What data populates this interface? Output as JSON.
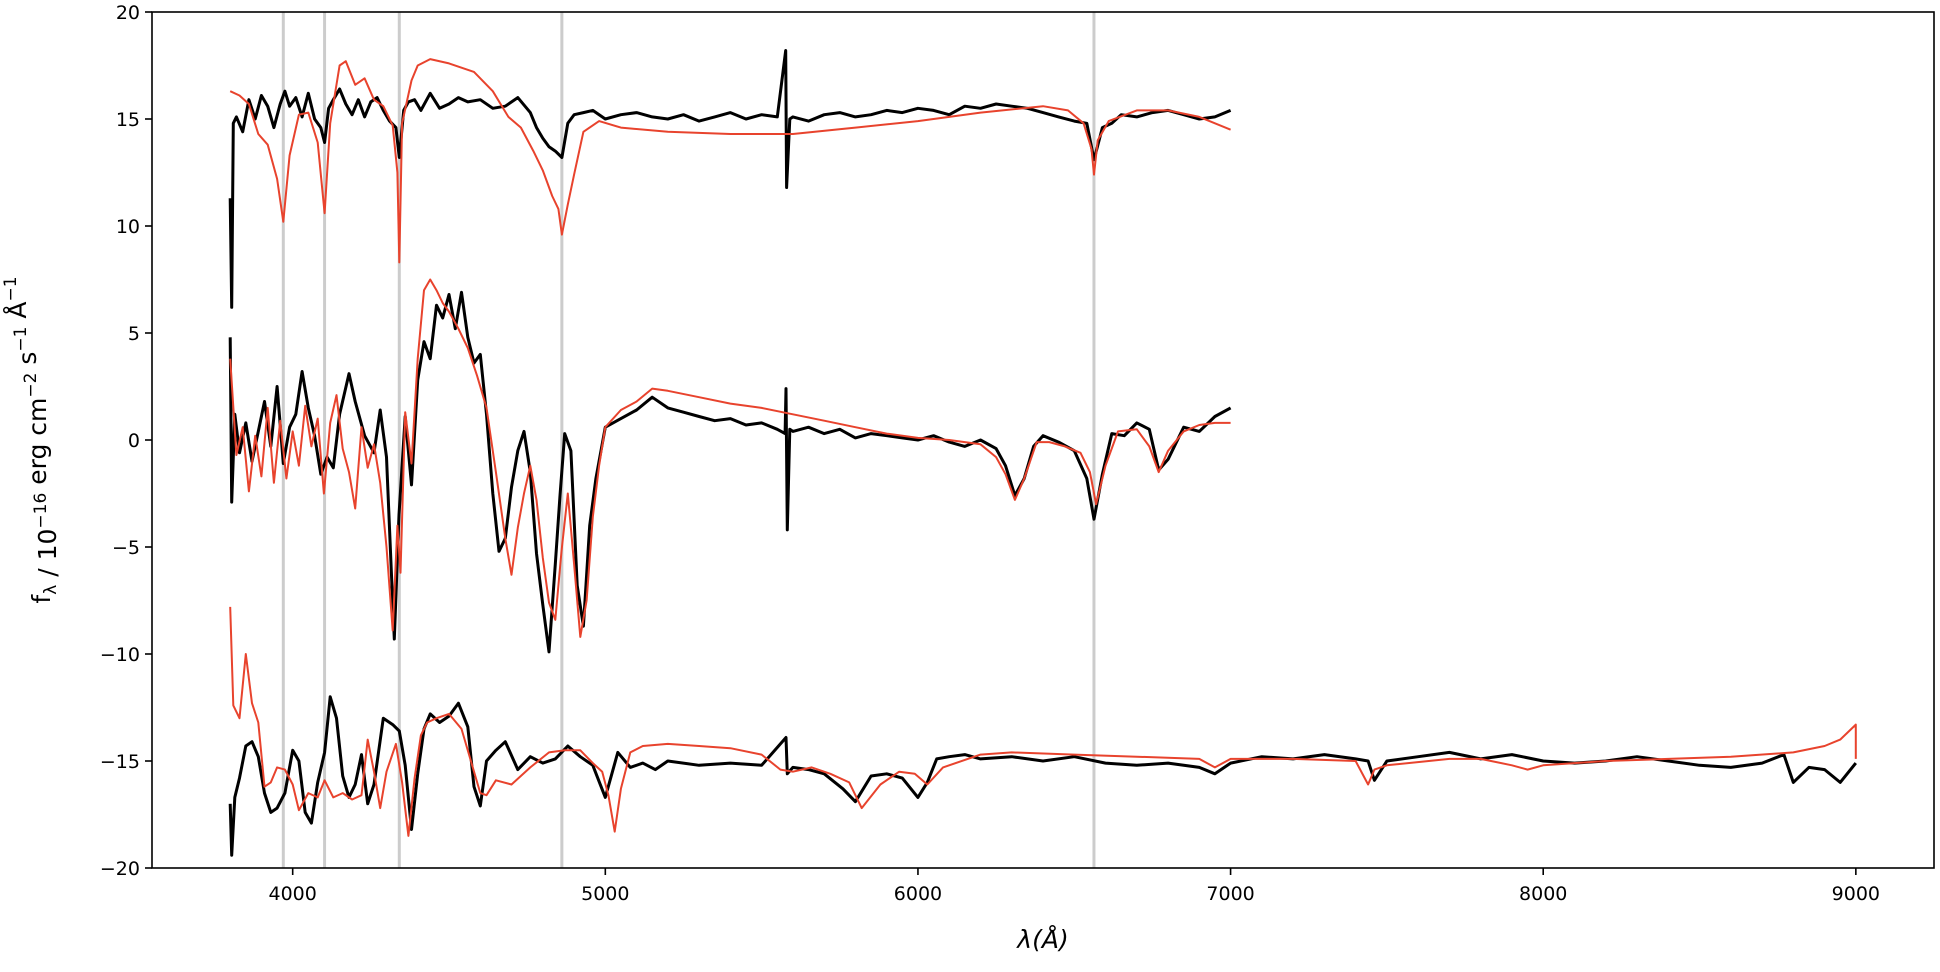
{
  "chart_data": {
    "type": "line",
    "title": "",
    "xlabel": "λ(Å)",
    "ylabel": "f_λ / 10^-16 erg cm^-2 s^-1 Å^-1",
    "xlim": [
      3550,
      9250
    ],
    "ylim": [
      -20,
      20
    ],
    "xticks": [
      4000,
      5000,
      6000,
      7000,
      8000,
      9000
    ],
    "yticks": [
      -20,
      -15,
      -10,
      -5,
      0,
      5,
      10,
      15,
      20
    ],
    "grid": false,
    "legend": "none",
    "reference_lines_x": [
      3970,
      4102,
      4341,
      4861,
      6563
    ],
    "reference_line_color": "#cccccc",
    "colors": {
      "observed": "#000000",
      "model": "#e8432d"
    },
    "series": [
      {
        "role": "observed",
        "group": "top",
        "x": [
          3800,
          3805,
          3810,
          3820,
          3840,
          3860,
          3880,
          3900,
          3920,
          3940,
          3960,
          3975,
          3990,
          4010,
          4030,
          4050,
          4070,
          4090,
          4102,
          4115,
          4130,
          4150,
          4170,
          4190,
          4210,
          4230,
          4250,
          4270,
          4290,
          4310,
          4330,
          4341,
          4355,
          4370,
          4390,
          4410,
          4440,
          4470,
          4500,
          4530,
          4560,
          4600,
          4640,
          4680,
          4720,
          4760,
          4780,
          4800,
          4820,
          4840,
          4861,
          4880,
          4900,
          4930,
          4960,
          5000,
          5050,
          5100,
          5150,
          5200,
          5250,
          5300,
          5350,
          5400,
          5450,
          5500,
          5550,
          5577,
          5580,
          5590,
          5600,
          5650,
          5700,
          5750,
          5800,
          5850,
          5900,
          5950,
          6000,
          6050,
          6100,
          6150,
          6200,
          6250,
          6300,
          6350,
          6400,
          6450,
          6500,
          6540,
          6563,
          6590,
          6620,
          6650,
          6700,
          6750,
          6800,
          6850,
          6900,
          6950,
          7000
        ],
        "y": [
          11.3,
          6.2,
          14.8,
          15.1,
          14.4,
          15.9,
          15.0,
          16.1,
          15.6,
          14.6,
          15.7,
          16.3,
          15.6,
          16.0,
          15.1,
          16.2,
          15.0,
          14.6,
          13.9,
          15.5,
          15.9,
          16.4,
          15.7,
          15.2,
          15.9,
          15.1,
          15.8,
          16.0,
          15.4,
          14.9,
          14.6,
          13.2,
          15.4,
          15.8,
          15.9,
          15.4,
          16.2,
          15.5,
          15.7,
          16.0,
          15.8,
          15.9,
          15.5,
          15.6,
          16.0,
          15.3,
          14.6,
          14.1,
          13.7,
          13.5,
          13.2,
          14.8,
          15.2,
          15.3,
          15.4,
          15.0,
          15.2,
          15.3,
          15.1,
          15.0,
          15.2,
          14.9,
          15.1,
          15.3,
          15.0,
          15.2,
          15.1,
          18.2,
          11.8,
          15.0,
          15.1,
          14.9,
          15.2,
          15.3,
          15.1,
          15.2,
          15.4,
          15.3,
          15.5,
          15.4,
          15.2,
          15.6,
          15.5,
          15.7,
          15.6,
          15.5,
          15.3,
          15.1,
          14.9,
          14.8,
          13.1,
          14.6,
          14.8,
          15.2,
          15.1,
          15.3,
          15.4,
          15.2,
          15.0,
          15.1,
          15.4
        ]
      },
      {
        "role": "model",
        "group": "top",
        "x": [
          3800,
          3830,
          3860,
          3890,
          3920,
          3950,
          3970,
          3990,
          4020,
          4050,
          4080,
          4102,
          4120,
          4150,
          4170,
          4200,
          4230,
          4260,
          4290,
          4320,
          4335,
          4341,
          4350,
          4380,
          4400,
          4440,
          4500,
          4580,
          4640,
          4690,
          4730,
          4770,
          4800,
          4830,
          4850,
          4861,
          4880,
          4900,
          4930,
          4980,
          5050,
          5200,
          5400,
          5600,
          5800,
          6000,
          6200,
          6400,
          6480,
          6530,
          6555,
          6563,
          6575,
          6610,
          6700,
          6800,
          6900,
          7000
        ],
        "y": [
          16.3,
          16.1,
          15.7,
          14.3,
          13.8,
          12.2,
          10.2,
          13.3,
          15.2,
          15.3,
          13.9,
          10.6,
          14.8,
          17.5,
          17.7,
          16.6,
          16.9,
          15.9,
          15.6,
          14.7,
          12.5,
          8.3,
          14.8,
          16.8,
          17.5,
          17.8,
          17.6,
          17.2,
          16.3,
          15.1,
          14.6,
          13.5,
          12.6,
          11.4,
          10.8,
          9.6,
          11.0,
          12.4,
          14.4,
          14.9,
          14.6,
          14.4,
          14.3,
          14.3,
          14.6,
          14.9,
          15.3,
          15.6,
          15.4,
          14.8,
          13.6,
          12.4,
          14.0,
          14.9,
          15.4,
          15.4,
          15.1,
          14.5
        ]
      },
      {
        "role": "observed",
        "group": "middle",
        "x": [
          3800,
          3805,
          3815,
          3830,
          3850,
          3870,
          3890,
          3910,
          3930,
          3950,
          3970,
          3990,
          4010,
          4030,
          4050,
          4070,
          4090,
          4110,
          4130,
          4150,
          4180,
          4200,
          4230,
          4260,
          4280,
          4300,
          4315,
          4325,
          4340,
          4360,
          4380,
          4400,
          4420,
          4440,
          4460,
          4480,
          4500,
          4520,
          4540,
          4560,
          4580,
          4600,
          4620,
          4640,
          4660,
          4680,
          4700,
          4720,
          4740,
          4760,
          4780,
          4800,
          4820,
          4840,
          4855,
          4870,
          4890,
          4910,
          4930,
          4950,
          4970,
          5000,
          5050,
          5100,
          5150,
          5200,
          5250,
          5300,
          5350,
          5400,
          5450,
          5500,
          5550,
          5575,
          5578,
          5582,
          5590,
          5600,
          5650,
          5700,
          5750,
          5800,
          5850,
          5900,
          5950,
          6000,
          6050,
          6100,
          6150,
          6200,
          6250,
          6280,
          6310,
          6340,
          6370,
          6400,
          6450,
          6500,
          6540,
          6563,
          6590,
          6620,
          6660,
          6700,
          6740,
          6770,
          6800,
          6850,
          6900,
          6950,
          7000
        ],
        "y": [
          4.8,
          -2.9,
          1.2,
          -0.6,
          0.8,
          -1.0,
          0.4,
          1.8,
          -0.3,
          2.5,
          -1.1,
          0.6,
          1.2,
          3.2,
          1.5,
          0.2,
          -1.6,
          -0.8,
          -1.3,
          1.2,
          3.1,
          1.8,
          0.2,
          -0.6,
          1.4,
          -0.8,
          -6.0,
          -9.3,
          -3.5,
          1.1,
          -2.1,
          2.8,
          4.6,
          3.8,
          6.3,
          5.7,
          6.8,
          5.2,
          6.9,
          4.8,
          3.6,
          4.0,
          1.2,
          -2.5,
          -5.2,
          -4.6,
          -2.2,
          -0.5,
          0.4,
          -1.5,
          -5.3,
          -7.7,
          -9.9,
          -5.8,
          -2.6,
          0.3,
          -0.5,
          -6.8,
          -8.7,
          -4.0,
          -1.8,
          0.6,
          1.0,
          1.4,
          2.0,
          1.5,
          1.3,
          1.1,
          0.9,
          1.0,
          0.7,
          0.8,
          0.5,
          0.3,
          2.4,
          -4.2,
          0.5,
          0.4,
          0.6,
          0.3,
          0.5,
          0.1,
          0.3,
          0.2,
          0.1,
          0.0,
          0.2,
          -0.1,
          -0.3,
          0.0,
          -0.4,
          -1.2,
          -2.6,
          -1.8,
          -0.3,
          0.2,
          -0.1,
          -0.5,
          -1.8,
          -3.7,
          -1.6,
          0.3,
          0.2,
          0.8,
          0.5,
          -1.4,
          -0.9,
          0.6,
          0.4,
          1.1,
          1.5
        ]
      },
      {
        "role": "model",
        "group": "middle",
        "x": [
          3800,
          3820,
          3840,
          3860,
          3880,
          3900,
          3920,
          3940,
          3960,
          3980,
          4000,
          4020,
          4040,
          4060,
          4080,
          4100,
          4120,
          4140,
          4160,
          4180,
          4200,
          4220,
          4240,
          4260,
          4280,
          4300,
          4320,
          4335,
          4345,
          4360,
          4380,
          4400,
          4420,
          4440,
          4460,
          4480,
          4500,
          4530,
          4560,
          4590,
          4620,
          4650,
          4680,
          4700,
          4720,
          4740,
          4760,
          4780,
          4800,
          4820,
          4840,
          4860,
          4880,
          4900,
          4920,
          4940,
          4960,
          4980,
          5000,
          5050,
          5100,
          5150,
          5200,
          5300,
          5400,
          5500,
          5600,
          5700,
          5800,
          5900,
          6000,
          6100,
          6200,
          6250,
          6280,
          6310,
          6340,
          6380,
          6420,
          6470,
          6520,
          6550,
          6570,
          6600,
          6640,
          6700,
          6740,
          6770,
          6800,
          6850,
          6900,
          6950,
          7000
        ],
        "y": [
          3.8,
          -0.7,
          0.6,
          -2.4,
          0.2,
          -1.7,
          1.5,
          -2.0,
          0.9,
          -1.8,
          0.4,
          -1.2,
          1.6,
          -0.3,
          1.0,
          -2.5,
          0.8,
          2.1,
          -0.4,
          -1.5,
          -3.2,
          0.6,
          -1.3,
          -0.2,
          -2.0,
          -5.0,
          -8.9,
          -4.0,
          -6.2,
          1.3,
          -1.1,
          3.8,
          7.0,
          7.5,
          7.0,
          6.4,
          6.0,
          5.2,
          4.3,
          3.0,
          1.5,
          -1.5,
          -4.6,
          -6.3,
          -4.1,
          -2.5,
          -1.2,
          -2.8,
          -5.5,
          -7.6,
          -8.4,
          -5.2,
          -2.5,
          -5.8,
          -9.2,
          -7.5,
          -3.6,
          -1.2,
          0.6,
          1.4,
          1.8,
          2.4,
          2.3,
          2.0,
          1.7,
          1.5,
          1.2,
          0.9,
          0.6,
          0.3,
          0.1,
          0.0,
          -0.2,
          -0.8,
          -1.6,
          -2.8,
          -1.8,
          -0.1,
          -0.1,
          -0.3,
          -0.6,
          -1.5,
          -3.0,
          -1.2,
          0.4,
          0.5,
          -0.3,
          -1.5,
          -0.5,
          0.4,
          0.7,
          0.8,
          0.8
        ]
      },
      {
        "role": "observed",
        "group": "bottom",
        "x": [
          3800,
          3805,
          3815,
          3830,
          3850,
          3870,
          3890,
          3910,
          3930,
          3950,
          3975,
          4000,
          4020,
          4040,
          4060,
          4080,
          4102,
          4120,
          4140,
          4160,
          4180,
          4200,
          4220,
          4240,
          4260,
          4290,
          4320,
          4341,
          4360,
          4380,
          4400,
          4420,
          4440,
          4470,
          4500,
          4530,
          4560,
          4580,
          4600,
          4620,
          4650,
          4680,
          4720,
          4760,
          4800,
          4840,
          4880,
          4920,
          4960,
          5000,
          5040,
          5080,
          5120,
          5160,
          5200,
          5300,
          5400,
          5500,
          5578,
          5582,
          5600,
          5650,
          5700,
          5760,
          5800,
          5850,
          5900,
          5950,
          6000,
          6030,
          6060,
          6100,
          6150,
          6200,
          6300,
          6400,
          6500,
          6600,
          6700,
          6800,
          6900,
          6950,
          7000,
          7100,
          7200,
          7300,
          7400,
          7440,
          7460,
          7500,
          7600,
          7700,
          7800,
          7900,
          8000,
          8100,
          8200,
          8300,
          8400,
          8500,
          8600,
          8700,
          8770,
          8800,
          8850,
          8900,
          8950,
          9000
        ],
        "y": [
          -17.0,
          -19.4,
          -16.7,
          -15.8,
          -14.3,
          -14.1,
          -14.8,
          -16.5,
          -17.4,
          -17.2,
          -16.5,
          -14.5,
          -15.0,
          -17.4,
          -17.9,
          -16.0,
          -14.6,
          -12.0,
          -13.0,
          -15.7,
          -16.7,
          -16.1,
          -14.7,
          -17.0,
          -16.1,
          -13.0,
          -13.3,
          -13.6,
          -15.2,
          -18.2,
          -15.6,
          -13.5,
          -12.8,
          -13.2,
          -12.9,
          -12.3,
          -13.4,
          -16.2,
          -17.1,
          -15.0,
          -14.5,
          -14.1,
          -15.4,
          -14.8,
          -15.1,
          -14.9,
          -14.3,
          -14.8,
          -15.2,
          -16.7,
          -14.6,
          -15.3,
          -15.1,
          -15.4,
          -15.0,
          -15.2,
          -15.1,
          -15.2,
          -13.9,
          -15.6,
          -15.3,
          -15.4,
          -15.6,
          -16.3,
          -16.9,
          -15.7,
          -15.6,
          -15.8,
          -16.7,
          -16.0,
          -14.9,
          -14.8,
          -14.7,
          -14.9,
          -14.8,
          -15.0,
          -14.8,
          -15.1,
          -15.2,
          -15.1,
          -15.3,
          -15.6,
          -15.1,
          -14.8,
          -14.9,
          -14.7,
          -14.9,
          -15.0,
          -15.9,
          -15.0,
          -14.8,
          -14.6,
          -14.9,
          -14.7,
          -15.0,
          -15.1,
          -15.0,
          -14.8,
          -15.0,
          -15.2,
          -15.3,
          -15.1,
          -14.7,
          -16.0,
          -15.3,
          -15.4,
          -16.0,
          -15.1
        ]
      },
      {
        "role": "model",
        "group": "bottom",
        "x": [
          3800,
          3810,
          3830,
          3850,
          3870,
          3890,
          3910,
          3930,
          3950,
          3975,
          4000,
          4020,
          4050,
          4080,
          4102,
          4130,
          4160,
          4190,
          4220,
          4240,
          4260,
          4280,
          4300,
          4330,
          4350,
          4370,
          4390,
          4410,
          4430,
          4460,
          4500,
          4540,
          4570,
          4600,
          4620,
          4650,
          4700,
          4760,
          4820,
          4870,
          4920,
          4960,
          4990,
          5010,
          5030,
          5050,
          5080,
          5120,
          5200,
          5300,
          5400,
          5500,
          5560,
          5600,
          5660,
          5720,
          5780,
          5820,
          5880,
          5940,
          5990,
          6030,
          6080,
          6200,
          6300,
          6500,
          6700,
          6900,
          6950,
          7000,
          7200,
          7400,
          7440,
          7460,
          7500,
          7700,
          7800,
          7900,
          7950,
          8000,
          8200,
          8400,
          8600,
          8800,
          8900,
          8950,
          9000,
          9000
        ],
        "y": [
          -7.8,
          -12.4,
          -13.0,
          -10.0,
          -12.3,
          -13.2,
          -16.2,
          -16.0,
          -15.3,
          -15.4,
          -16.1,
          -17.3,
          -16.5,
          -16.7,
          -15.9,
          -16.7,
          -16.5,
          -16.8,
          -16.6,
          -14.0,
          -15.5,
          -17.2,
          -15.5,
          -14.2,
          -16.0,
          -18.5,
          -15.8,
          -13.8,
          -13.2,
          -13.0,
          -12.8,
          -13.5,
          -15.0,
          -16.5,
          -16.6,
          -15.9,
          -16.1,
          -15.3,
          -14.6,
          -14.5,
          -14.5,
          -15.1,
          -15.5,
          -16.6,
          -18.3,
          -16.3,
          -14.6,
          -14.3,
          -14.2,
          -14.3,
          -14.4,
          -14.7,
          -15.4,
          -15.5,
          -15.3,
          -15.6,
          -16.0,
          -17.2,
          -16.1,
          -15.5,
          -15.6,
          -16.1,
          -15.3,
          -14.7,
          -14.6,
          -14.7,
          -14.8,
          -14.9,
          -15.3,
          -14.9,
          -14.9,
          -15.0,
          -16.1,
          -15.4,
          -15.2,
          -14.9,
          -14.9,
          -15.2,
          -15.4,
          -15.2,
          -15.0,
          -14.9,
          -14.8,
          -14.6,
          -14.3,
          -14.0,
          -13.3,
          -14.9
        ]
      }
    ]
  }
}
